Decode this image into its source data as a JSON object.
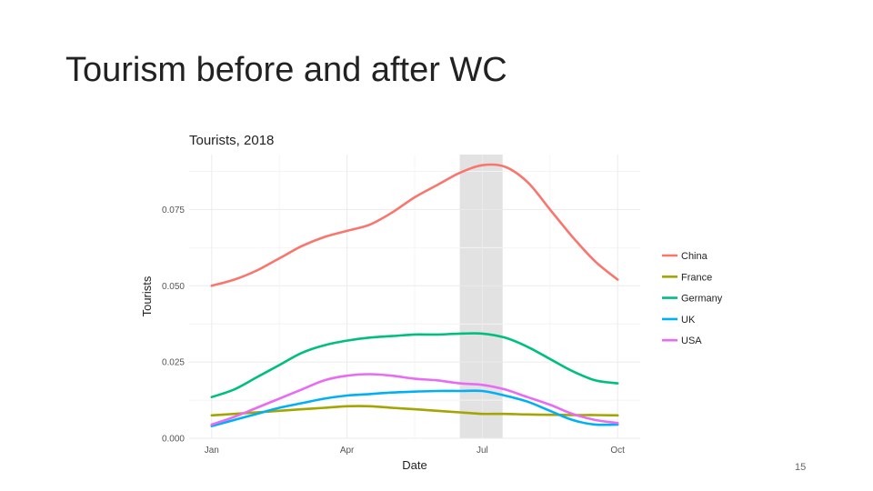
{
  "slide": {
    "title": "Tourism before and after WC",
    "page_number": "15"
  },
  "chart_data": {
    "type": "line",
    "title": "Tourists, 2018",
    "xlabel": "Date",
    "ylabel": "Tourists",
    "x_ticks": [
      "Jan",
      "Apr",
      "Jul",
      "Oct"
    ],
    "x_tick_values": [
      0,
      3,
      6,
      9
    ],
    "xlim": [
      -0.5,
      9.5
    ],
    "y_ticks": [
      "0.000",
      "0.025",
      "0.050",
      "0.075"
    ],
    "y_tick_values": [
      0,
      0.025,
      0.05,
      0.075
    ],
    "ylim": [
      0,
      0.093
    ],
    "highlight_x_range": [
      5.5,
      6.45
    ],
    "grid": true,
    "legend_position": "right",
    "x": [
      0,
      0.5,
      1,
      1.5,
      2,
      2.5,
      3,
      3.5,
      4,
      4.5,
      5,
      5.5,
      6,
      6.5,
      7,
      7.5,
      8,
      8.5,
      9
    ],
    "series": [
      {
        "name": "China",
        "color": "#F8766D",
        "values": [
          0.05,
          0.052,
          0.055,
          0.059,
          0.063,
          0.066,
          0.068,
          0.07,
          0.074,
          0.079,
          0.083,
          0.087,
          0.0895,
          0.089,
          0.084,
          0.075,
          0.066,
          0.058,
          0.052
        ]
      },
      {
        "name": "France",
        "color": "#A3A500",
        "values": [
          0.0075,
          0.008,
          0.0085,
          0.009,
          0.0095,
          0.01,
          0.0105,
          0.0105,
          0.01,
          0.0095,
          0.009,
          0.0085,
          0.008,
          0.008,
          0.0078,
          0.0077,
          0.0076,
          0.0076,
          0.0075
        ]
      },
      {
        "name": "Germany",
        "color": "#00BF7D",
        "values": [
          0.0135,
          0.016,
          0.02,
          0.024,
          0.028,
          0.0305,
          0.032,
          0.033,
          0.0335,
          0.034,
          0.034,
          0.0343,
          0.0343,
          0.033,
          0.03,
          0.026,
          0.022,
          0.019,
          0.018
        ]
      },
      {
        "name": "UK",
        "color": "#00B0F6",
        "values": [
          0.004,
          0.006,
          0.008,
          0.01,
          0.0115,
          0.013,
          0.014,
          0.0145,
          0.015,
          0.0153,
          0.0155,
          0.0155,
          0.0155,
          0.014,
          0.012,
          0.009,
          0.006,
          0.0045,
          0.0045
        ]
      },
      {
        "name": "USA",
        "color": "#E76BF3",
        "values": [
          0.0045,
          0.007,
          0.01,
          0.013,
          0.016,
          0.019,
          0.0205,
          0.021,
          0.0205,
          0.0195,
          0.019,
          0.018,
          0.0175,
          0.016,
          0.0135,
          0.011,
          0.008,
          0.006,
          0.005
        ]
      }
    ]
  }
}
